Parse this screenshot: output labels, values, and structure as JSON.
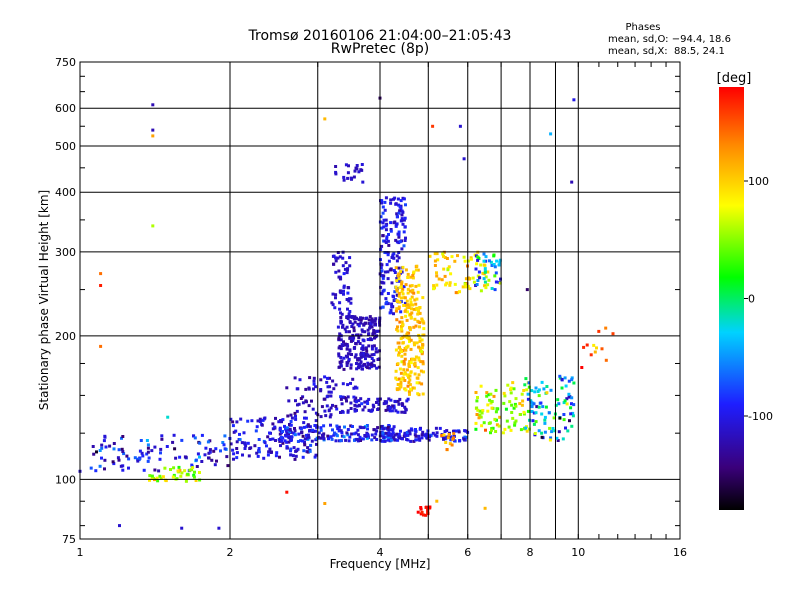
{
  "chart_data": {
    "type": "scatter",
    "title": "Tromsø 20160106 21:04:00–21:05:43",
    "subtitle": "RwPretec (8p)",
    "xlabel": "Frequency [MHz]",
    "ylabel": "Stationary phase Virtual Height [km]",
    "xscale": "log",
    "yscale": "log",
    "xlim": [
      1,
      16
    ],
    "ylim": [
      75,
      750
    ],
    "xticks": [
      1,
      2,
      4,
      6,
      8,
      10,
      16
    ],
    "xticklabels": [
      "1",
      "2",
      "4",
      "6",
      "8",
      "10",
      "16"
    ],
    "xminor": [
      3,
      5,
      7,
      9
    ],
    "yticks": [
      75,
      100,
      200,
      300,
      400,
      500,
      600,
      750
    ],
    "yticklabels": [
      "75",
      "100",
      "200",
      "300",
      "400",
      "500",
      "600",
      "750"
    ],
    "grid": true,
    "stats": {
      "title": "Phases",
      "line1": "mean, sd,O: −94.4, 18.6",
      "line2": "mean, sd,X:  88.5, 24.1"
    },
    "colorbar": {
      "label": "[deg]",
      "range": [
        -180,
        180
      ],
      "ticks": [
        100,
        0,
        -100
      ],
      "ticklabels": [
        "100",
        "0",
        "-100"
      ],
      "colors": [
        "#000000",
        "#3a007a",
        "#1e1eff",
        "#00d2ff",
        "#00ff00",
        "#ffff00",
        "#ff8c00",
        "#ff0000"
      ]
    },
    "clusters": [
      {
        "f1": 1.05,
        "f2": 2.0,
        "h1": 104,
        "h2": 124,
        "n": 110,
        "phase": -100,
        "sd": 55
      },
      {
        "f1": 1.35,
        "f2": 1.75,
        "h1": 99,
        "h2": 106,
        "n": 40,
        "phase": 60,
        "sd": 40
      },
      {
        "f1": 2.0,
        "f2": 3.0,
        "h1": 110,
        "h2": 135,
        "n": 140,
        "phase": -105,
        "sd": 35
      },
      {
        "f1": 2.5,
        "f2": 4.3,
        "h1": 120,
        "h2": 130,
        "n": 160,
        "phase": -95,
        "sd": 40
      },
      {
        "f1": 2.6,
        "f2": 3.6,
        "h1": 135,
        "h2": 165,
        "n": 90,
        "phase": -115,
        "sd": 25
      },
      {
        "f1": 3.3,
        "f2": 4.0,
        "h1": 170,
        "h2": 220,
        "n": 220,
        "phase": -118,
        "sd": 15
      },
      {
        "f1": 3.2,
        "f2": 3.5,
        "h1": 220,
        "h2": 300,
        "n": 55,
        "phase": -110,
        "sd": 15
      },
      {
        "f1": 4.0,
        "f2": 4.5,
        "h1": 220,
        "h2": 390,
        "n": 170,
        "phase": -100,
        "sd": 25
      },
      {
        "f1": 4.3,
        "f2": 4.9,
        "h1": 150,
        "h2": 280,
        "n": 250,
        "phase": 105,
        "sd": 25
      },
      {
        "f1": 4.0,
        "f2": 6.0,
        "h1": 120,
        "h2": 128,
        "n": 140,
        "phase": -100,
        "sd": 30
      },
      {
        "f1": 3.5,
        "f2": 4.6,
        "h1": 138,
        "h2": 148,
        "n": 70,
        "phase": -110,
        "sd": 20
      },
      {
        "f1": 5.0,
        "f2": 6.6,
        "h1": 245,
        "h2": 300,
        "n": 70,
        "phase": 95,
        "sd": 35
      },
      {
        "f1": 6.2,
        "f2": 7.1,
        "h1": 250,
        "h2": 300,
        "n": 40,
        "phase": -40,
        "sd": 80
      },
      {
        "f1": 6.2,
        "f2": 8.0,
        "h1": 125,
        "h2": 160,
        "n": 90,
        "phase": 70,
        "sd": 50
      },
      {
        "f1": 7.8,
        "f2": 9.8,
        "h1": 120,
        "h2": 165,
        "n": 100,
        "phase": -40,
        "sd": 90
      },
      {
        "f1": 3.25,
        "f2": 3.7,
        "h1": 420,
        "h2": 465,
        "n": 22,
        "phase": -115,
        "sd": 12
      },
      {
        "f1": 4.75,
        "f2": 5.05,
        "h1": 84,
        "h2": 88,
        "n": 16,
        "phase": 175,
        "sd": 10
      },
      {
        "f1": 5.3,
        "f2": 5.7,
        "h1": 115,
        "h2": 125,
        "n": 12,
        "phase": 110,
        "sd": 30
      },
      {
        "f1": 10.0,
        "f2": 12.0,
        "h1": 170,
        "h2": 210,
        "n": 12,
        "phase": 150,
        "sd": 50
      }
    ],
    "scatter_points": [
      {
        "f": 1.4,
        "h": 610,
        "phase": -120
      },
      {
        "f": 1.4,
        "h": 540,
        "phase": -120
      },
      {
        "f": 1.4,
        "h": 525,
        "phase": 120
      },
      {
        "f": 1.4,
        "h": 340,
        "phase": 60
      },
      {
        "f": 1.1,
        "h": 270,
        "phase": 140
      },
      {
        "f": 1.1,
        "h": 255,
        "phase": 170
      },
      {
        "f": 1.1,
        "h": 190,
        "phase": 140
      },
      {
        "f": 3.1,
        "h": 570,
        "phase": 110
      },
      {
        "f": 4.0,
        "h": 630,
        "phase": -150
      },
      {
        "f": 5.1,
        "h": 550,
        "phase": 160
      },
      {
        "f": 5.8,
        "h": 550,
        "phase": -110
      },
      {
        "f": 5.9,
        "h": 470,
        "phase": -110
      },
      {
        "f": 9.8,
        "h": 625,
        "phase": -100
      },
      {
        "f": 9.7,
        "h": 420,
        "phase": -120
      },
      {
        "f": 8.8,
        "h": 530,
        "phase": -40
      },
      {
        "f": 1.2,
        "h": 80,
        "phase": -110
      },
      {
        "f": 1.6,
        "h": 79,
        "phase": -110
      },
      {
        "f": 1.9,
        "h": 79,
        "phase": -110
      },
      {
        "f": 2.6,
        "h": 94,
        "phase": 175
      },
      {
        "f": 3.1,
        "h": 89,
        "phase": 120
      },
      {
        "f": 5.2,
        "h": 90,
        "phase": 110
      },
      {
        "f": 6.5,
        "h": 87,
        "phase": 110
      },
      {
        "f": 7.9,
        "h": 250,
        "phase": -150
      },
      {
        "f": 1.0,
        "h": 104,
        "phase": -110
      },
      {
        "f": 1.5,
        "h": 135,
        "phase": -20
      }
    ]
  }
}
